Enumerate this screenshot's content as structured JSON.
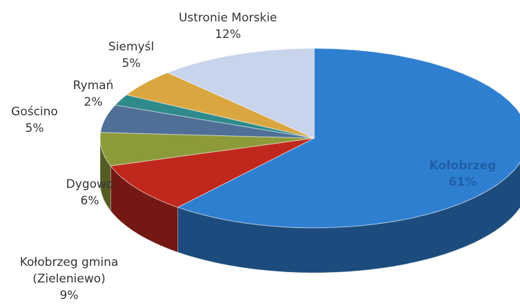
{
  "chart_data": {
    "type": "pie3d",
    "categories": [
      "Kołobrzeg",
      "Kołobrzeg gmina (Zieleniewo)",
      "Dygowo",
      "Gościno",
      "Rymań",
      "Siemyśl",
      "Ustronie Morskie"
    ],
    "values": [
      61,
      9,
      6,
      5,
      2,
      5,
      12
    ],
    "value_labels": [
      "61%",
      "9%",
      "6%",
      "5%",
      "2%",
      "5%",
      "12%"
    ],
    "colors": [
      "#2f7fd0",
      "#c0281e",
      "#8d9a3a",
      "#4f6f96",
      "#2f8a8c",
      "#d9a640",
      "#c8d4ec"
    ]
  }
}
